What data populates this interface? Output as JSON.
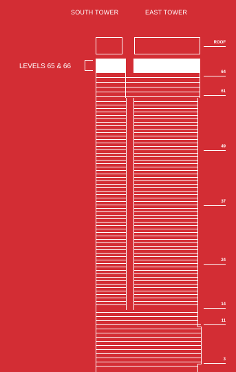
{
  "towers": {
    "south": "SOUTH TOWER",
    "east": "EAST TOWER"
  },
  "callout": "LEVELS 65 & 66",
  "levels": {
    "roof": "ROOF",
    "l64": "64",
    "l61": "61",
    "l49": "49",
    "l37": "37",
    "l24": "24",
    "l14": "14",
    "l11": "11",
    "l3": "3"
  },
  "colors": {
    "background": "#D32D34",
    "line": "#FFFFFF"
  }
}
